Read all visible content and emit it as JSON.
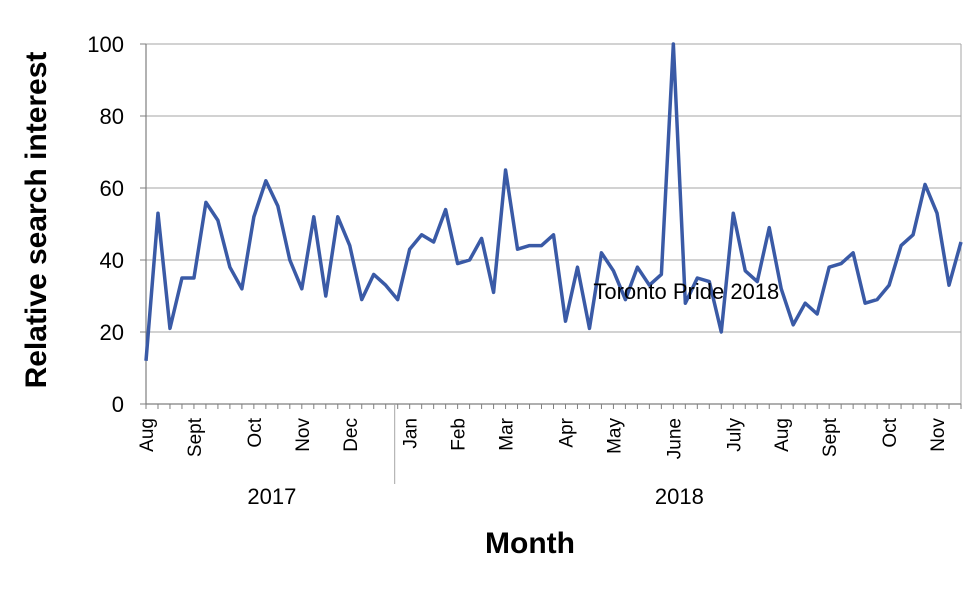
{
  "chart_data": {
    "type": "line",
    "title": "",
    "xlabel": "Month",
    "ylabel": "Relative search interest",
    "ylim": [
      0,
      100
    ],
    "yticks": [
      0,
      20,
      40,
      60,
      80,
      100
    ],
    "grid": true,
    "series_color": "#3a5aa6",
    "annotation": {
      "text": "Toronto Pride 2018",
      "index": 45
    },
    "year_groups": [
      {
        "label": "2017",
        "start_index": 0,
        "end_index": 21
      },
      {
        "label": "2018",
        "start_index": 21,
        "end_index": 70
      }
    ],
    "month_labels": [
      {
        "label": "Aug",
        "index": 0
      },
      {
        "label": "Sept",
        "index": 4
      },
      {
        "label": "Oct",
        "index": 9
      },
      {
        "label": "Nov",
        "index": 13
      },
      {
        "label": "Dec",
        "index": 17
      },
      {
        "label": "Jan",
        "index": 22
      },
      {
        "label": "Feb",
        "index": 26
      },
      {
        "label": "Mar",
        "index": 30
      },
      {
        "label": "Apr",
        "index": 35
      },
      {
        "label": "May",
        "index": 39
      },
      {
        "label": "June",
        "index": 44
      },
      {
        "label": "July",
        "index": 49
      },
      {
        "label": "Aug",
        "index": 53
      },
      {
        "label": "Sept",
        "index": 57
      },
      {
        "label": "Oct",
        "index": 62
      },
      {
        "label": "Nov",
        "index": 66
      }
    ],
    "values": [
      12,
      53,
      21,
      35,
      35,
      56,
      51,
      38,
      32,
      52,
      62,
      55,
      40,
      32,
      52,
      30,
      52,
      44,
      29,
      36,
      33,
      29,
      43,
      47,
      45,
      54,
      39,
      40,
      46,
      31,
      65,
      43,
      44,
      44,
      47,
      23,
      38,
      21,
      42,
      37,
      29,
      38,
      33,
      36,
      100,
      28,
      35,
      34,
      20,
      53,
      37,
      34,
      49,
      32,
      22,
      28,
      25,
      38,
      39,
      42,
      28,
      29,
      33,
      44,
      47,
      61,
      53,
      33,
      45
    ]
  }
}
